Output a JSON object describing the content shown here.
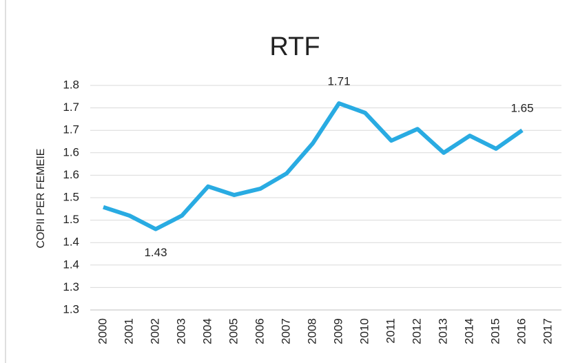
{
  "chart_data": {
    "type": "line",
    "title": "RTF",
    "y_label": "COPII PER FEMEIE",
    "categories": [
      "2000",
      "2001",
      "2002",
      "2003",
      "2004",
      "2005",
      "2006",
      "2007",
      "2008",
      "2009",
      "2010",
      "2011",
      "2012",
      "2013",
      "2014",
      "2015",
      "2016",
      "2017"
    ],
    "series": [
      {
        "name": "RTF",
        "color": "#29abe2",
        "values": [
          1.479,
          1.46,
          1.43,
          1.46,
          1.525,
          1.506,
          1.52,
          1.554,
          1.621,
          1.71,
          1.689,
          1.627,
          1.653,
          1.6,
          1.638,
          1.609,
          1.65,
          null
        ]
      }
    ],
    "data_labels_at": [
      2,
      9,
      16
    ],
    "ylim": [
      1.25,
      1.75
    ],
    "yticks": [
      {
        "value": 1.25,
        "label": "1.3"
      },
      {
        "value": 1.3,
        "label": "1.3"
      },
      {
        "value": 1.35,
        "label": "1.4"
      },
      {
        "value": 1.4,
        "label": "1.4"
      },
      {
        "value": 1.45,
        "label": "1.5"
      },
      {
        "value": 1.5,
        "label": "1.5"
      },
      {
        "value": 1.55,
        "label": "1.6"
      },
      {
        "value": 1.6,
        "label": "1.6"
      },
      {
        "value": 1.65,
        "label": "1.7"
      },
      {
        "value": 1.7,
        "label": "1.7"
      },
      {
        "value": 1.75,
        "label": "1.8"
      }
    ],
    "grid": true
  }
}
